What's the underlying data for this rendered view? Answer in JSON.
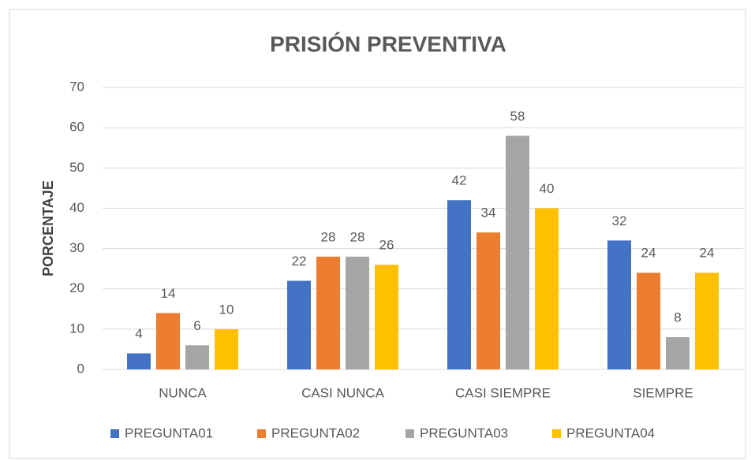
{
  "chart_data": {
    "type": "bar",
    "title": "PRISIÓN PREVENTIVA",
    "y_label": "PORCENTAJE",
    "categories": [
      "NUNCA",
      "CASI NUNCA",
      "CASI SIEMPRE",
      "SIEMPRE"
    ],
    "series": [
      {
        "name": "PREGUNTA01",
        "color": "#4472c4",
        "values": [
          4,
          22,
          42,
          32
        ]
      },
      {
        "name": "PREGUNTA02",
        "color": "#ed7d31",
        "values": [
          14,
          28,
          34,
          24
        ]
      },
      {
        "name": "PREGUNTA03",
        "color": "#a5a5a5",
        "values": [
          6,
          28,
          58,
          8
        ]
      },
      {
        "name": "PREGUNTA04",
        "color": "#ffc000",
        "values": [
          10,
          26,
          40,
          24
        ]
      }
    ],
    "ylim": [
      0,
      70
    ],
    "yticks": [
      0,
      10,
      20,
      30,
      40,
      50,
      60,
      70
    ],
    "grid": true,
    "legend": "bottom"
  }
}
